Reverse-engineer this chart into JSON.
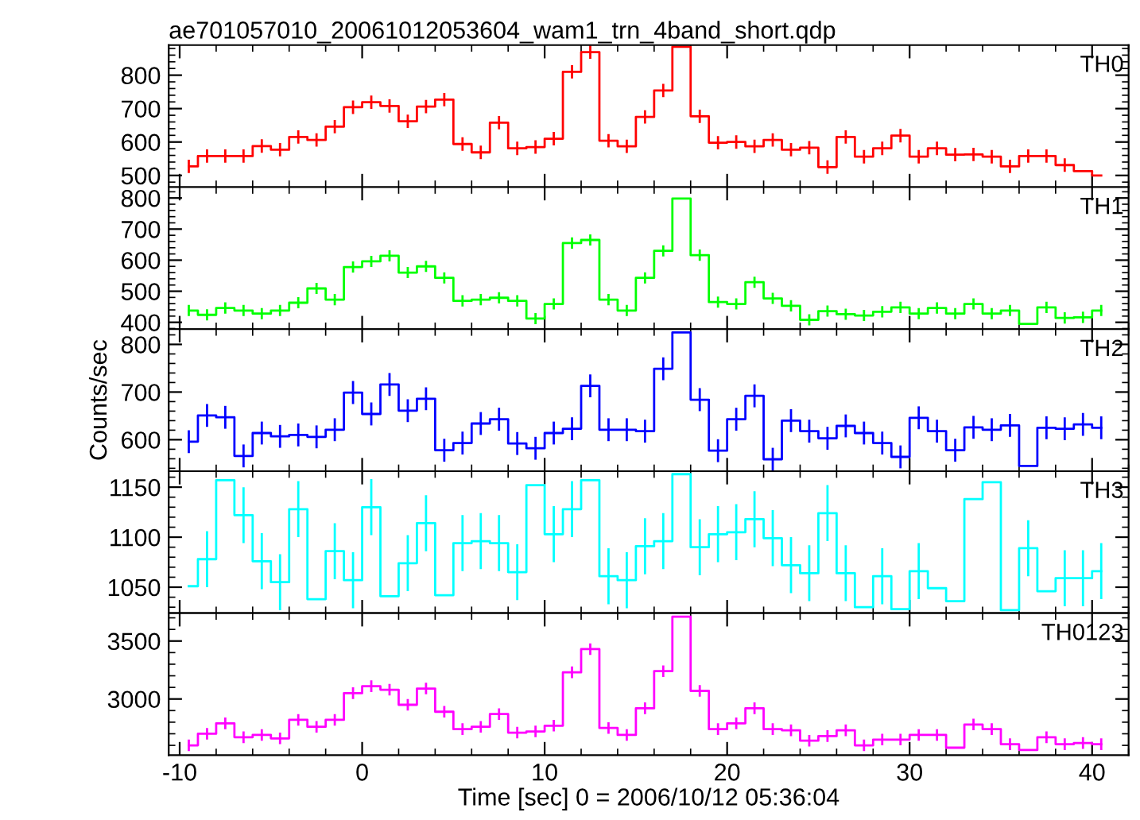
{
  "chart_data": [
    {
      "type": "step",
      "title": "ae701057010_20061012053604_wam1_trn_4band_short.qdp",
      "tick_labels": "y",
      "x": [
        -9.5,
        -8.5,
        -7.5,
        -6.5,
        -5.5,
        -4.5,
        -3.5,
        -2.5,
        -1.5,
        -0.5,
        0.5,
        1.5,
        2.5,
        3.5,
        4.5,
        5.5,
        6.5,
        7.5,
        8.5,
        9.5,
        10.5,
        11.5,
        12.5,
        13.5,
        14.5,
        15.5,
        16.5,
        17.5,
        18.5,
        19.5,
        20.5,
        21.5,
        22.5,
        23.5,
        24.5,
        25.5,
        26.5,
        27.5,
        28.5,
        29.5,
        30.5,
        31.5,
        32.5,
        33.5,
        34.5,
        35.5,
        36.5,
        37.5,
        38.5,
        39.5,
        40.5
      ],
      "xlim": [
        -10.6,
        42
      ],
      "xticks": [
        -10,
        0,
        10,
        20,
        30,
        40
      ],
      "ylim": [
        465,
        890
      ],
      "yticks": [
        500,
        600,
        700,
        800
      ],
      "series": [
        {
          "name": "TH0",
          "color": "#ff0000",
          "values": [
            527,
            558,
            558,
            558,
            588,
            577,
            615,
            606,
            646,
            704,
            719,
            708,
            662,
            706,
            727,
            594,
            569,
            658,
            581,
            585,
            610,
            810,
            869,
            604,
            587,
            675,
            754,
            885,
            677,
            598,
            600,
            587,
            606,
            577,
            583,
            525,
            615,
            556,
            581,
            619,
            556,
            581,
            562,
            563,
            556,
            527,
            558,
            558,
            531,
            513,
            500
          ],
          "errors": [
            20,
            20,
            20,
            20,
            20,
            20,
            20,
            20,
            20,
            20,
            20,
            20,
            20,
            20,
            20,
            20,
            20,
            20,
            20,
            20,
            20,
            20,
            20,
            20,
            20,
            20,
            20,
            null,
            20,
            20,
            20,
            20,
            20,
            20,
            20,
            20,
            20,
            20,
            20,
            20,
            20,
            20,
            20,
            20,
            20,
            20,
            20,
            20,
            20,
            null,
            null
          ]
        }
      ]
    },
    {
      "type": "step",
      "tick_labels": "y",
      "x": [
        -9.5,
        -8.5,
        -7.5,
        -6.5,
        -5.5,
        -4.5,
        -3.5,
        -2.5,
        -1.5,
        -0.5,
        0.5,
        1.5,
        2.5,
        3.5,
        4.5,
        5.5,
        6.5,
        7.5,
        8.5,
        9.5,
        10.5,
        11.5,
        12.5,
        13.5,
        14.5,
        15.5,
        16.5,
        17.5,
        18.5,
        19.5,
        20.5,
        21.5,
        22.5,
        23.5,
        24.5,
        25.5,
        26.5,
        27.5,
        28.5,
        29.5,
        30.5,
        31.5,
        32.5,
        33.5,
        34.5,
        35.5,
        36.5,
        37.5,
        38.5,
        39.5,
        40.5
      ],
      "xlim": [
        -10.6,
        42
      ],
      "xticks": [
        -10,
        0,
        10,
        20,
        30,
        40
      ],
      "ylim": [
        378,
        835
      ],
      "yticks": [
        400,
        500,
        600,
        700,
        800
      ],
      "series": [
        {
          "name": "TH1",
          "color": "#00ff00",
          "values": [
            438,
            424,
            446,
            438,
            428,
            438,
            463,
            509,
            473,
            578,
            596,
            614,
            560,
            580,
            543,
            469,
            473,
            479,
            469,
            412,
            459,
            655,
            665,
            473,
            438,
            543,
            630,
            798,
            616,
            465,
            459,
            529,
            477,
            453,
            408,
            436,
            426,
            422,
            434,
            448,
            428,
            446,
            428,
            459,
            428,
            438,
            395,
            448,
            414,
            416,
            438
          ],
          "errors": [
            18,
            18,
            18,
            18,
            18,
            18,
            18,
            18,
            18,
            18,
            18,
            18,
            18,
            18,
            18,
            18,
            18,
            18,
            18,
            18,
            18,
            18,
            18,
            18,
            18,
            18,
            18,
            null,
            18,
            18,
            18,
            18,
            18,
            18,
            18,
            18,
            18,
            18,
            18,
            18,
            18,
            18,
            18,
            18,
            18,
            18,
            null,
            18,
            18,
            18,
            18
          ]
        }
      ]
    },
    {
      "type": "step",
      "tick_labels": "y",
      "ylabel": "Counts/sec",
      "x": [
        -9.5,
        -8.5,
        -7.5,
        -6.5,
        -5.5,
        -4.5,
        -3.5,
        -2.5,
        -1.5,
        -0.5,
        0.5,
        1.5,
        2.5,
        3.5,
        4.5,
        5.5,
        6.5,
        7.5,
        8.5,
        9.5,
        10.5,
        11.5,
        12.5,
        13.5,
        14.5,
        15.5,
        16.5,
        17.5,
        18.5,
        19.5,
        20.5,
        21.5,
        22.5,
        23.5,
        24.5,
        25.5,
        26.5,
        27.5,
        28.5,
        29.5,
        30.5,
        31.5,
        32.5,
        33.5,
        34.5,
        35.5,
        36.5,
        37.5,
        38.5,
        39.5,
        40.5
      ],
      "xlim": [
        -10.6,
        42
      ],
      "xticks": [
        -10,
        0,
        10,
        20,
        30,
        40
      ],
      "ylim": [
        534,
        832
      ],
      "yticks": [
        600,
        700,
        800
      ],
      "series": [
        {
          "name": "TH2",
          "color": "#0000ff",
          "values": [
            596,
            651,
            647,
            566,
            614,
            607,
            610,
            606,
            621,
            699,
            654,
            716,
            661,
            686,
            578,
            593,
            634,
            643,
            592,
            582,
            614,
            623,
            713,
            621,
            621,
            618,
            749,
            825,
            684,
            577,
            643,
            692,
            559,
            640,
            618,
            603,
            629,
            614,
            593,
            564,
            646,
            618,
            578,
            626,
            621,
            630,
            545,
            625,
            623,
            632,
            625
          ],
          "errors": [
            24,
            24,
            24,
            24,
            24,
            24,
            24,
            24,
            24,
            24,
            24,
            24,
            24,
            24,
            24,
            24,
            24,
            24,
            24,
            24,
            24,
            24,
            24,
            24,
            24,
            24,
            24,
            null,
            24,
            24,
            24,
            24,
            24,
            24,
            24,
            24,
            24,
            24,
            24,
            24,
            24,
            24,
            24,
            24,
            24,
            24,
            null,
            24,
            24,
            24,
            24
          ]
        }
      ]
    },
    {
      "type": "step",
      "tick_labels": "y",
      "x": [
        -9.5,
        -8.5,
        -7.5,
        -6.5,
        -5.5,
        -4.5,
        -3.5,
        -2.5,
        -1.5,
        -0.5,
        0.5,
        1.5,
        2.5,
        3.5,
        4.5,
        5.5,
        6.5,
        7.5,
        8.5,
        9.5,
        10.5,
        11.5,
        12.5,
        13.5,
        14.5,
        15.5,
        16.5,
        17.5,
        18.5,
        19.5,
        20.5,
        21.5,
        22.5,
        23.5,
        24.5,
        25.5,
        26.5,
        27.5,
        28.5,
        29.5,
        30.5,
        31.5,
        32.5,
        33.5,
        34.5,
        35.5,
        36.5,
        37.5,
        38.5,
        39.5,
        40.5
      ],
      "xlim": [
        -10.6,
        42
      ],
      "xticks": [
        -10,
        0,
        10,
        20,
        30,
        40
      ],
      "ylim": [
        1024,
        1166
      ],
      "yticks": [
        1050,
        1100,
        1150
      ],
      "series": [
        {
          "name": "TH3",
          "color": "#00ffff",
          "values": [
            1051,
            1078,
            1157,
            1122,
            1076,
            1055,
            1128,
            1038,
            1086,
            1057,
            1130,
            1041,
            1074,
            1114,
            1042,
            1094,
            1096,
            1094,
            1065,
            1152,
            1103,
            1128,
            1157,
            1061,
            1057,
            1091,
            1096,
            1163,
            1090,
            1103,
            1105,
            1118,
            1099,
            1072,
            1064,
            1124,
            1064,
            1030,
            1061,
            1028,
            1066,
            1049,
            1036,
            1138,
            1155,
            1027,
            1089,
            1046,
            1059,
            1059,
            1066
          ],
          "errors": [
            null,
            28,
            null,
            28,
            28,
            28,
            28,
            null,
            28,
            28,
            28,
            null,
            28,
            28,
            null,
            28,
            28,
            28,
            28,
            null,
            28,
            28,
            null,
            28,
            28,
            28,
            28,
            null,
            28,
            28,
            28,
            28,
            28,
            28,
            28,
            28,
            28,
            null,
            28,
            null,
            28,
            null,
            null,
            null,
            null,
            null,
            28,
            null,
            28,
            28,
            28
          ]
        }
      ]
    },
    {
      "type": "step",
      "xlabel": "Time [sec] 0 = 2006/10/12 05:36:04",
      "x": [
        -9.5,
        -8.5,
        -7.5,
        -6.5,
        -5.5,
        -4.5,
        -3.5,
        -2.5,
        -1.5,
        -0.5,
        0.5,
        1.5,
        2.5,
        3.5,
        4.5,
        5.5,
        6.5,
        7.5,
        8.5,
        9.5,
        10.5,
        11.5,
        12.5,
        13.5,
        14.5,
        15.5,
        16.5,
        17.5,
        18.5,
        19.5,
        20.5,
        21.5,
        22.5,
        23.5,
        24.5,
        25.5,
        26.5,
        27.5,
        28.5,
        29.5,
        30.5,
        31.5,
        32.5,
        33.5,
        34.5,
        35.5,
        36.5,
        37.5,
        38.5,
        39.5,
        40.5
      ],
      "xlim": [
        -10.6,
        42
      ],
      "xticks": [
        -10,
        0,
        10,
        20,
        30,
        40
      ],
      "ylim": [
        2515,
        3740
      ],
      "yticks": [
        3000,
        3500
      ],
      "series": [
        {
          "name": "TH0123",
          "color": "#ff00ff",
          "values": [
            2600,
            2700,
            2790,
            2670,
            2690,
            2660,
            2820,
            2760,
            2820,
            3050,
            3110,
            3080,
            2950,
            3090,
            2890,
            2740,
            2760,
            2870,
            2710,
            2720,
            2770,
            3230,
            3430,
            2750,
            2690,
            2920,
            3240,
            3710,
            3070,
            2740,
            2790,
            2920,
            2740,
            2730,
            2640,
            2680,
            2730,
            2600,
            2650,
            2650,
            2690,
            2690,
            2580,
            2780,
            2740,
            2610,
            2560,
            2670,
            2610,
            2620,
            2610
          ],
          "errors": [
            50,
            50,
            50,
            50,
            50,
            50,
            50,
            50,
            50,
            50,
            50,
            50,
            50,
            50,
            50,
            50,
            50,
            50,
            50,
            50,
            50,
            50,
            50,
            50,
            50,
            50,
            50,
            null,
            50,
            50,
            50,
            50,
            50,
            50,
            50,
            50,
            50,
            50,
            50,
            50,
            50,
            50,
            null,
            50,
            50,
            50,
            null,
            50,
            50,
            50,
            50
          ]
        }
      ]
    }
  ]
}
